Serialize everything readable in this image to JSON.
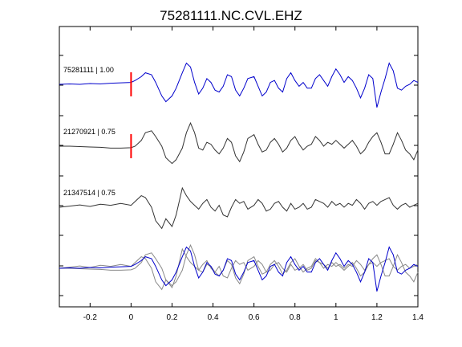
{
  "chart_data": {
    "type": "line",
    "title": "75281111.NC.CVL.EHZ",
    "xlabel": "",
    "ylabel": "",
    "xlim": [
      -0.35,
      1.4
    ],
    "xticks": [
      -0.2,
      0,
      0.2,
      0.4,
      0.6,
      0.8,
      1,
      1.2,
      1.4
    ],
    "xtick_labels": [
      "-0.2",
      "0",
      "0.2",
      "0.4",
      "0.6",
      "0.8",
      "1",
      "1.2",
      "1.4"
    ],
    "pick_time": 0,
    "colors": {
      "primary": "#0000cc",
      "secondary": "#333333",
      "overlay": "#888888",
      "pick": "#ff0000"
    },
    "series": [
      {
        "label": "75281111 | 1.00",
        "color": "#0000cc",
        "has_pick": true,
        "x": [
          -0.35,
          -0.3,
          -0.25,
          -0.2,
          -0.15,
          -0.1,
          -0.05,
          0,
          0.02,
          0.05,
          0.07,
          0.1,
          0.12,
          0.15,
          0.17,
          0.2,
          0.22,
          0.25,
          0.27,
          0.29,
          0.31,
          0.33,
          0.35,
          0.37,
          0.39,
          0.41,
          0.43,
          0.45,
          0.47,
          0.49,
          0.51,
          0.53,
          0.55,
          0.57,
          0.6,
          0.62,
          0.64,
          0.66,
          0.68,
          0.7,
          0.72,
          0.74,
          0.76,
          0.78,
          0.8,
          0.82,
          0.84,
          0.86,
          0.88,
          0.9,
          0.92,
          0.94,
          0.96,
          0.98,
          1,
          1.02,
          1.04,
          1.06,
          1.08,
          1.1,
          1.12,
          1.14,
          1.16,
          1.18,
          1.2,
          1.22,
          1.24,
          1.26,
          1.28,
          1.3,
          1.32,
          1.34,
          1.36,
          1.38,
          1.4
        ],
        "y": [
          0,
          0.01,
          0,
          0.02,
          0.01,
          0.03,
          0.04,
          0.05,
          0.1,
          0.2,
          0.3,
          0.25,
          0.05,
          -0.3,
          -0.45,
          -0.3,
          -0.1,
          0.3,
          0.55,
          0.45,
          0.05,
          -0.25,
          -0.1,
          0.15,
          0.05,
          -0.15,
          -0.2,
          -0.05,
          0.25,
          0.2,
          -0.15,
          -0.3,
          -0.1,
          0.15,
          0.2,
          -0.05,
          -0.3,
          -0.2,
          0.05,
          0.1,
          -0.1,
          -0.2,
          0.15,
          0.3,
          0.1,
          -0.05,
          0.05,
          -0.1,
          -0.1,
          0.15,
          0.25,
          0.1,
          -0.05,
          0.2,
          0.4,
          0.25,
          0.05,
          0.2,
          0.1,
          -0.1,
          -0.35,
          -0.1,
          0.25,
          0.15,
          -0.6,
          -0.2,
          0.15,
          0.55,
          0.35,
          -0.1,
          -0.15,
          -0.05,
          0,
          0.1,
          0.05
        ]
      },
      {
        "label": "21270921 | 0.75",
        "color": "#333333",
        "has_pick": true,
        "x": [
          -0.35,
          -0.3,
          -0.25,
          -0.2,
          -0.15,
          -0.1,
          -0.05,
          0,
          0.02,
          0.05,
          0.07,
          0.1,
          0.12,
          0.15,
          0.17,
          0.2,
          0.22,
          0.25,
          0.27,
          0.29,
          0.31,
          0.33,
          0.35,
          0.37,
          0.39,
          0.41,
          0.43,
          0.45,
          0.47,
          0.49,
          0.51,
          0.53,
          0.55,
          0.57,
          0.6,
          0.62,
          0.64,
          0.66,
          0.68,
          0.7,
          0.72,
          0.74,
          0.76,
          0.78,
          0.8,
          0.82,
          0.84,
          0.86,
          0.88,
          0.9,
          0.92,
          0.94,
          0.96,
          0.98,
          1,
          1.02,
          1.04,
          1.06,
          1.08,
          1.1,
          1.12,
          1.14,
          1.16,
          1.18,
          1.2,
          1.22,
          1.24,
          1.26,
          1.28,
          1.3,
          1.32,
          1.34,
          1.36,
          1.38,
          1.4
        ],
        "y": [
          0,
          0,
          -0.01,
          -0.02,
          -0.03,
          -0.05,
          -0.05,
          -0.04,
          0,
          0.15,
          0.35,
          0.4,
          0.25,
          0,
          -0.3,
          -0.45,
          -0.35,
          -0.05,
          0.35,
          0.6,
          0.35,
          -0.05,
          -0.1,
          0.1,
          0.05,
          -0.1,
          -0.2,
          -0.05,
          0.2,
          0.1,
          -0.25,
          -0.4,
          -0.15,
          0.2,
          0.3,
          0.05,
          -0.15,
          -0.1,
          0.1,
          0.2,
          0.05,
          -0.15,
          -0.05,
          0.15,
          0.25,
          0.05,
          -0.1,
          0,
          0.05,
          0.25,
          0.15,
          0,
          0.1,
          0.05,
          0.15,
          0.05,
          -0.05,
          0.05,
          0.15,
          0,
          -0.2,
          -0.1,
          0.1,
          0.25,
          0.35,
          0.1,
          -0.2,
          -0.2,
          0.05,
          0.35,
          0.15,
          -0.1,
          -0.2,
          -0.35,
          -0.1
        ]
      },
      {
        "label": "21347514 | 0.75",
        "color": "#333333",
        "has_pick": false,
        "x": [
          -0.35,
          -0.3,
          -0.25,
          -0.2,
          -0.15,
          -0.1,
          -0.05,
          0,
          0.02,
          0.05,
          0.07,
          0.1,
          0.12,
          0.15,
          0.17,
          0.2,
          0.22,
          0.25,
          0.27,
          0.29,
          0.31,
          0.33,
          0.35,
          0.37,
          0.39,
          0.41,
          0.43,
          0.45,
          0.47,
          0.49,
          0.51,
          0.53,
          0.55,
          0.57,
          0.6,
          0.62,
          0.64,
          0.66,
          0.68,
          0.7,
          0.72,
          0.74,
          0.76,
          0.78,
          0.8,
          0.82,
          0.84,
          0.86,
          0.88,
          0.9,
          0.92,
          0.94,
          0.96,
          0.98,
          1,
          1.02,
          1.04,
          1.06,
          1.08,
          1.1,
          1.12,
          1.14,
          1.16,
          1.18,
          1.2,
          1.22,
          1.24,
          1.26,
          1.28,
          1.3,
          1.32,
          1.34,
          1.36,
          1.38,
          1.4
        ],
        "y": [
          0,
          0.03,
          0.06,
          0.02,
          0.08,
          0.05,
          0.1,
          0.05,
          0.15,
          0.3,
          0.25,
          0,
          -0.35,
          -0.55,
          -0.3,
          -0.5,
          -0.2,
          0.5,
          0.3,
          0.15,
          0.05,
          -0.05,
          0.1,
          0.2,
          0,
          -0.1,
          0.05,
          -0.2,
          -0.25,
          0,
          0.2,
          0.1,
          0.15,
          -0.05,
          0.05,
          0.2,
          0.1,
          -0.1,
          -0.05,
          0.1,
          0.15,
          0,
          -0.1,
          0.1,
          -0.05,
          0,
          0.1,
          -0.05,
          0,
          0.2,
          0.15,
          0.1,
          0,
          0.15,
          0.05,
          0.1,
          0,
          0.1,
          0.05,
          0.2,
          0.1,
          -0.05,
          0.1,
          0.15,
          0.05,
          0.15,
          0.2,
          0.25,
          0.05,
          -0.05,
          0.05,
          0.1,
          0,
          0.05,
          0.1
        ]
      }
    ]
  }
}
